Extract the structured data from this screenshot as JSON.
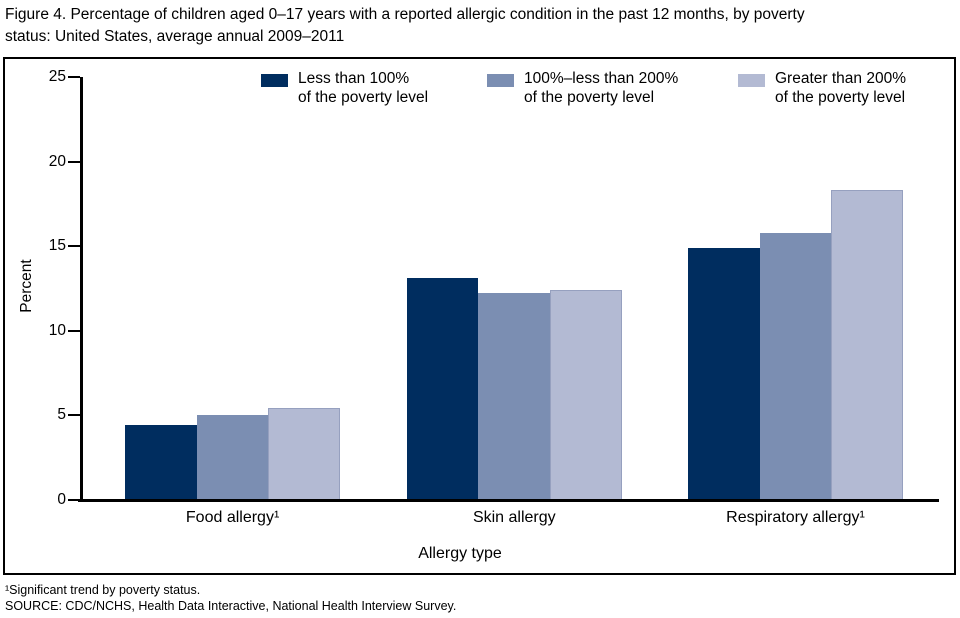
{
  "title_lines": [
    "Figure 4. Percentage of children aged 0–17 years with a reported allergic condition in the past 12 months, by poverty",
    "status: United States, average annual 2009–2011"
  ],
  "footnotes": [
    "¹Significant trend by poverty status.",
    "SOURCE: CDC/NCHS, Health Data Interactive, National Health Interview Survey."
  ],
  "colors": {
    "series_dark": "#002d5f",
    "series_medium": "#7b8eb2",
    "series_light": "#b3bad3",
    "axis": "#000000"
  },
  "chart_data": {
    "type": "bar",
    "title": "Figure 4. Percentage of children aged 0–17 years with a reported allergic condition in the past 12 months, by poverty status: United States, average annual 2009–2011",
    "xlabel": "Allergy type",
    "ylabel": "Percent",
    "ylim": [
      0,
      25
    ],
    "y_ticks": [
      0,
      5,
      10,
      15,
      20,
      25
    ],
    "grid": false,
    "legend_position": "top",
    "categories": [
      "Food allergy¹",
      "Skin allergy",
      "Respiratory allergy¹"
    ],
    "series": [
      {
        "name": "Less than 100% of the poverty level",
        "legend_lines": [
          "Less than 100%",
          "of the poverty level"
        ],
        "color": "#002d5f",
        "values": [
          4.4,
          13.1,
          14.9
        ]
      },
      {
        "name": "100%–less than 200% of the poverty level",
        "legend_lines": [
          "100%–less than 200%",
          "of the poverty level"
        ],
        "color": "#7b8eb2",
        "values": [
          5.0,
          12.2,
          15.8
        ]
      },
      {
        "name": "Greater than 200% of the poverty level",
        "legend_lines": [
          "Greater than 200%",
          "of the poverty level"
        ],
        "color": "#b3bad3",
        "values": [
          5.4,
          12.4,
          18.3
        ]
      }
    ]
  }
}
